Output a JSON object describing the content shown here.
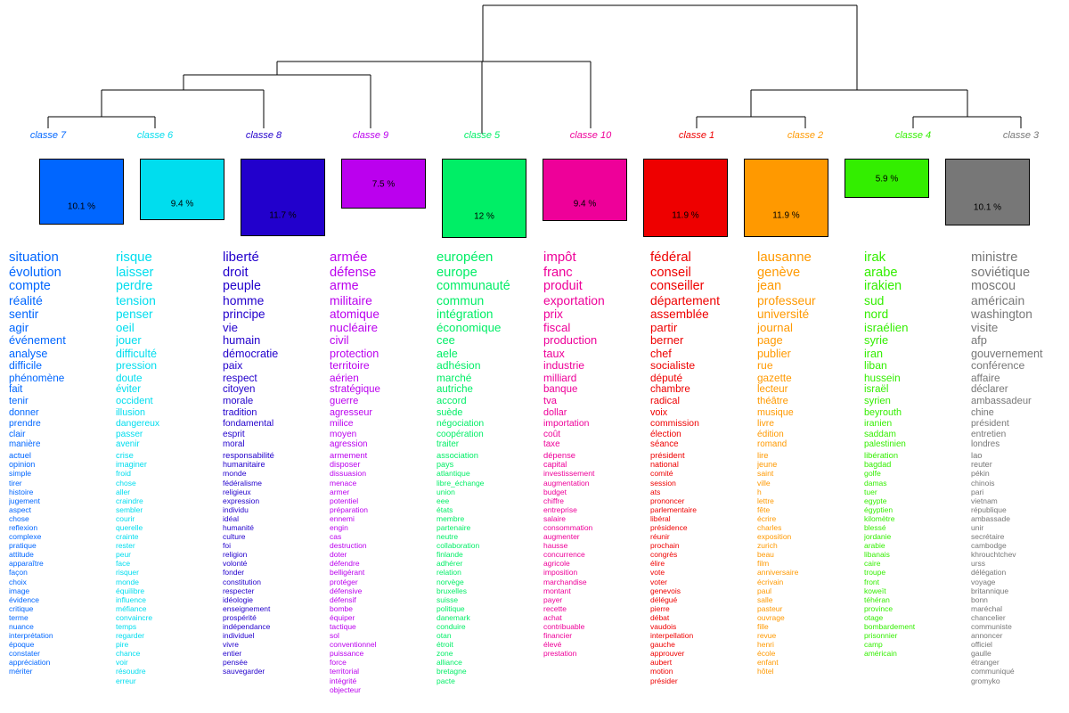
{
  "classes": [
    {
      "id": "7",
      "label": "classe  7",
      "pct": "10.1 %",
      "color": "#0066ff",
      "pct_value": 10.1,
      "words": [
        "situation",
        "évolution",
        "compte",
        "réalité",
        "sentir",
        "agir",
        "événement",
        "analyse",
        "difficile",
        "phénomène",
        "fait",
        "tenir",
        "donner",
        "prendre",
        "clair",
        "manière",
        "actuel",
        "opinion",
        "simple",
        "tirer",
        "histoire",
        "jugement",
        "aspect",
        "chose",
        "reflexion",
        "complexe",
        "pratique",
        "attitude",
        "apparaître",
        "façon",
        "choix",
        "image",
        "évidence",
        "critique",
        "terme",
        "nuance",
        "interprétation",
        "époque",
        "constater",
        "appréciation",
        "mériter"
      ]
    },
    {
      "id": "6",
      "label": "classe  6",
      "pct": "9.4 %",
      "color": "#00ddee",
      "pct_value": 9.4,
      "words": [
        "risque",
        "laisser",
        "perdre",
        "tension",
        "penser",
        "oeil",
        "jouer",
        "difficulté",
        "pression",
        "doute",
        "éviter",
        "occident",
        "illusion",
        "dangereux",
        "passer",
        "avenir",
        "crise",
        "imaginer",
        "froid",
        "chose",
        "aller",
        "craindre",
        "sembler",
        "courir",
        "querelle",
        "crainte",
        "rester",
        "peur",
        "face",
        "risquer",
        "monde",
        "équilibre",
        "influence",
        "méfiance",
        "convaincre",
        "temps",
        "regarder",
        "pire",
        "chance",
        "voir",
        "résoudre",
        "erreur"
      ]
    },
    {
      "id": "8",
      "label": "classe  8",
      "pct": "11.7 %",
      "color": "#2200cc",
      "pct_value": 11.7,
      "words": [
        "liberté",
        "droit",
        "peuple",
        "homme",
        "principe",
        "vie",
        "humain",
        "démocratie",
        "paix",
        "respect",
        "citoyen",
        "morale",
        "tradition",
        "fondamental",
        "esprit",
        "moral",
        "responsabilité",
        "humanitaire",
        "monde",
        "fédéralisme",
        "religieux",
        "expression",
        "individu",
        "idéal",
        "humanité",
        "culture",
        "foi",
        "religion",
        "volonté",
        "fonder",
        "constitution",
        "respecter",
        "idéologie",
        "enseignement",
        "prospérité",
        "indépendance",
        "individuel",
        "vivre",
        "entier",
        "pensée",
        "sauvegarder"
      ]
    },
    {
      "id": "9",
      "label": "classe  9",
      "pct": "7.5 %",
      "color": "#bb00ee",
      "pct_value": 7.5,
      "words": [
        "armée",
        "défense",
        "arme",
        "militaire",
        "atomique",
        "nucléaire",
        "civil",
        "protection",
        "territoire",
        "aérien",
        "stratégique",
        "guerre",
        "agresseur",
        "milice",
        "moyen",
        "agression",
        "armement",
        "disposer",
        "dissuasion",
        "menace",
        "armer",
        "potentiel",
        "préparation",
        "ennemi",
        "engin",
        "cas",
        "destruction",
        "doter",
        "défendre",
        "belligérant",
        "protéger",
        "défensive",
        "défensif",
        "bombe",
        "équiper",
        "tactique",
        "sol",
        "conventionnel",
        "puissance",
        "force",
        "territorial",
        "intégrité",
        "objecteur"
      ]
    },
    {
      "id": "5",
      "label": "classe  5",
      "pct": "12 %",
      "color": "#00ee66",
      "pct_value": 12,
      "words": [
        "européen",
        "europe",
        "communauté",
        "commun",
        "intégration",
        "économique",
        "cee",
        "aele",
        "adhésion",
        "marché",
        "autriche",
        "accord",
        "suède",
        "négociation",
        "coopération",
        "traiter",
        "association",
        "pays",
        "atlantique",
        "libre_échange",
        "union",
        "eee",
        "états",
        "membre",
        "partenaire",
        "neutre",
        "collaboration",
        "finlande",
        "adhérer",
        "relation",
        "norvège",
        "bruxelles",
        "suisse",
        "politique",
        "danemark",
        "conduire",
        "otan",
        "étroit",
        "zone",
        "alliance",
        "bretagne",
        "pacte"
      ]
    },
    {
      "id": "10",
      "label": "classe  10",
      "pct": "9.4 %",
      "color": "#ee0099",
      "pct_value": 9.4,
      "words": [
        "impôt",
        "franc",
        "produit",
        "exportation",
        "prix",
        "fiscal",
        "production",
        "taux",
        "industrie",
        "milliard",
        "banque",
        "tva",
        "dollar",
        "importation",
        "coût",
        "taxe",
        "dépense",
        "capital",
        "investissement",
        "augmentation",
        "budget",
        "chiffre",
        "entreprise",
        "salaire",
        "consommation",
        "augmenter",
        "hausse",
        "concurrence",
        "agricole",
        "imposition",
        "marchandise",
        "montant",
        "payer",
        "recette",
        "achat",
        "contribuable",
        "financier",
        "élevé",
        "prestation"
      ]
    },
    {
      "id": "1",
      "label": "classe  1",
      "pct": "11.9 %",
      "color": "#ee0000",
      "pct_value": 11.9,
      "words": [
        "fédéral",
        "conseil",
        "conseiller",
        "département",
        "assemblée",
        "partir",
        "berner",
        "chef",
        "socialiste",
        "député",
        "chambre",
        "radical",
        "voix",
        "commission",
        "élection",
        "séance",
        "président",
        "national",
        "comité",
        "session",
        "ats",
        "prononcer",
        "parlementaire",
        "libéral",
        "présidence",
        "réunir",
        "prochain",
        "congrès",
        "élire",
        "vote",
        "voter",
        "genevois",
        "délégué",
        "pierre",
        "débat",
        "vaudois",
        "interpellation",
        "gauche",
        "approuver",
        "aubert",
        "motion",
        "présider"
      ]
    },
    {
      "id": "2",
      "label": "classe  2",
      "pct": "11.9 %",
      "color": "#ff9900",
      "pct_value": 11.9,
      "words": [
        "lausanne",
        "genève",
        "jean",
        "professeur",
        "université",
        "journal",
        "page",
        "publier",
        "rue",
        "gazette",
        "lecteur",
        "théâtre",
        "musique",
        "livre",
        "édition",
        "romand",
        "lire",
        "jeune",
        "saint",
        "ville",
        "h",
        "lettre",
        "fête",
        "écrire",
        "charles",
        "exposition",
        "zurich",
        "beau",
        "film",
        "anniversaire",
        "écrivain",
        "paul",
        "salle",
        "pasteur",
        "ouvrage",
        "fille",
        "revue",
        "henri",
        "école",
        "enfant",
        "hôtel"
      ]
    },
    {
      "id": "4",
      "label": "classe  4",
      "pct": "5.9 %",
      "color": "#33ee00",
      "pct_value": 5.9,
      "words": [
        "irak",
        "arabe",
        "irakien",
        "sud",
        "nord",
        "israélien",
        "syrie",
        "iran",
        "liban",
        "hussein",
        "israël",
        "syrien",
        "beyrouth",
        "iranien",
        "saddam",
        "palestinien",
        "libération",
        "bagdad",
        "golfe",
        "damas",
        "tuer",
        "egypte",
        "égyptien",
        "kilomètre",
        "blessé",
        "jordanie",
        "arabie",
        "libanais",
        "caire",
        "troupe",
        "front",
        "koweït",
        "téhéran",
        "province",
        "otage",
        "bombardement",
        "prisonnier",
        "camp",
        "américain"
      ]
    },
    {
      "id": "3",
      "label": "classe  3",
      "pct": "10.1 %",
      "color": "#777777",
      "pct_value": 10.1,
      "words": [
        "ministre",
        "soviétique",
        "moscou",
        "américain",
        "washington",
        "visite",
        "afp",
        "gouvernement",
        "conférence",
        "affaire",
        "déclarer",
        "ambassadeur",
        "chine",
        "président",
        "entretien",
        "londres",
        "lao",
        "reuter",
        "pékin",
        "chinois",
        "pari",
        "vietnam",
        "république",
        "ambassade",
        "unir",
        "secrétaire",
        "cambodge",
        "khrouchtchev",
        "urss",
        "délégation",
        "voyage",
        "britannique",
        "bonn",
        "maréchal",
        "chancelier",
        "communiste",
        "annoncer",
        "officiel",
        "gaulle",
        "étranger",
        "communiqué",
        "gromyko"
      ]
    }
  ]
}
